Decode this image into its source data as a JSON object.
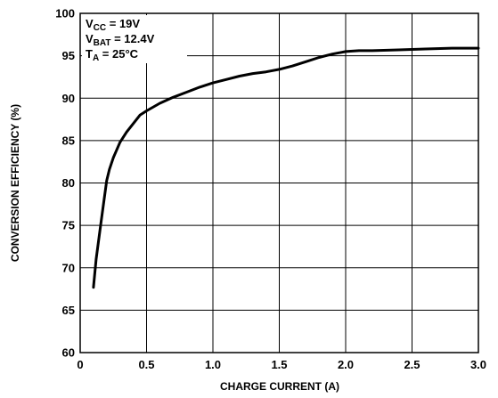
{
  "chart_data": {
    "type": "line",
    "title": "",
    "xlabel": "CHARGE CURRENT (A)",
    "ylabel": "CONVERSION EFFICIENCY (%)",
    "xlim": [
      0,
      3.0
    ],
    "ylim": [
      60,
      100
    ],
    "x_ticks": [
      0,
      0.5,
      1.0,
      1.5,
      2.0,
      2.5,
      3.0
    ],
    "x_tick_labels": [
      "0",
      "0.5",
      "1.0",
      "1.5",
      "2.0",
      "2.5",
      "3.0"
    ],
    "y_ticks": [
      60,
      65,
      70,
      75,
      80,
      85,
      90,
      95,
      100
    ],
    "y_tick_labels": [
      "60",
      "65",
      "70",
      "75",
      "80",
      "85",
      "90",
      "95",
      "100"
    ],
    "grid": true,
    "conditions": [
      {
        "main": "V",
        "sub": "CC",
        "rest": " = 19V"
      },
      {
        "main": "V",
        "sub": "BAT",
        "rest": " = 12.4V"
      },
      {
        "main": "T",
        "sub": "A",
        "rest": " = 25°C"
      }
    ],
    "series": [
      {
        "x": [
          0.1,
          0.12,
          0.15,
          0.18,
          0.2,
          0.22,
          0.25,
          0.3,
          0.35,
          0.4,
          0.45,
          0.5,
          0.6,
          0.7,
          0.8,
          0.9,
          1.0,
          1.1,
          1.2,
          1.3,
          1.4,
          1.5,
          1.6,
          1.7,
          1.8,
          1.9,
          2.0,
          2.1,
          2.2,
          2.4,
          2.6,
          2.8,
          3.0
        ],
        "y": [
          67.7,
          71.0,
          74.5,
          78.0,
          80.3,
          81.6,
          83.0,
          84.8,
          86.0,
          87.0,
          88.0,
          88.5,
          89.4,
          90.1,
          90.7,
          91.3,
          91.8,
          92.2,
          92.6,
          92.9,
          93.1,
          93.4,
          93.8,
          94.3,
          94.8,
          95.2,
          95.5,
          95.6,
          95.6,
          95.7,
          95.8,
          95.9,
          95.9
        ]
      }
    ]
  }
}
